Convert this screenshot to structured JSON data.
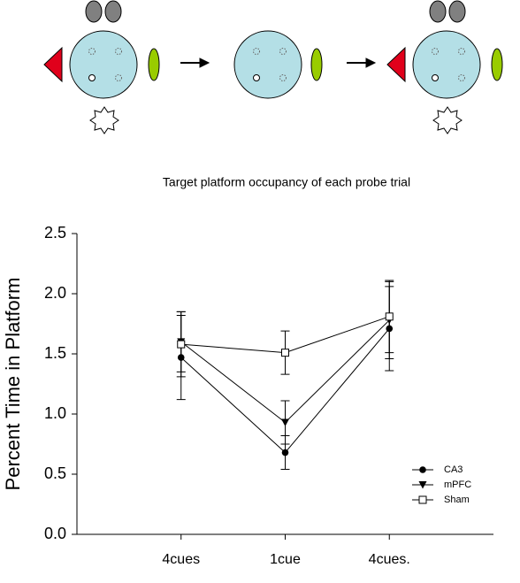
{
  "chart_data": {
    "type": "line",
    "title": "Target platform occupancy of each probe trial",
    "ylabel": "Percent Time in Platform",
    "categories": [
      "4cues",
      "1cue",
      "4cues."
    ],
    "series": [
      {
        "name": "CA3",
        "color": "#000000",
        "marker": "circle",
        "values": [
          1.47,
          0.68,
          1.71
        ],
        "errors": [
          0.35,
          0.14,
          0.35
        ]
      },
      {
        "name": "mPFC",
        "color": "#000000",
        "marker": "triangle-down",
        "values": [
          1.6,
          0.93,
          1.78
        ],
        "errors": [
          0.25,
          0.18,
          0.32
        ]
      },
      {
        "name": "Sham",
        "color": "#000000",
        "marker": "square-open",
        "values": [
          1.58,
          1.51,
          1.81
        ],
        "errors": [
          0.27,
          0.18,
          0.3
        ]
      }
    ],
    "ylim": [
      0,
      2.5
    ],
    "yticks": [
      {
        "value": 0,
        "label": "0.0"
      },
      0.5,
      {
        "value": 1,
        "label": "1.0"
      },
      1.5,
      {
        "value": 2,
        "label": "2.0"
      },
      2.5
    ],
    "legend": "lower right",
    "grid": false
  }
}
